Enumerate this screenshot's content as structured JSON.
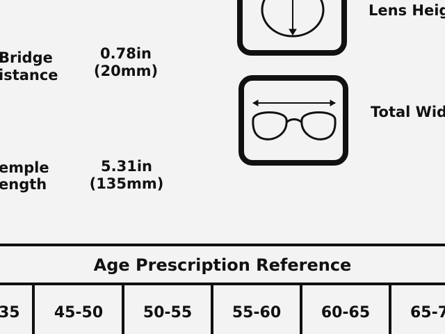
{
  "specs": [
    {
      "label": [
        "Bridge",
        "istance"
      ],
      "value": [
        "0.78in",
        "(20mm)"
      ]
    },
    {
      "label": [
        "emple",
        "ength"
      ],
      "value": [
        "5.31in",
        "(135mm)"
      ]
    }
  ],
  "icons": [
    {
      "label": "Lens Heig"
    },
    {
      "label": "Total Wid"
    }
  ],
  "table": {
    "title": "Age Prescription Reference",
    "columns": [
      "35",
      "45-50",
      "50-55",
      "55-60",
      "60-65",
      "65-7"
    ]
  }
}
